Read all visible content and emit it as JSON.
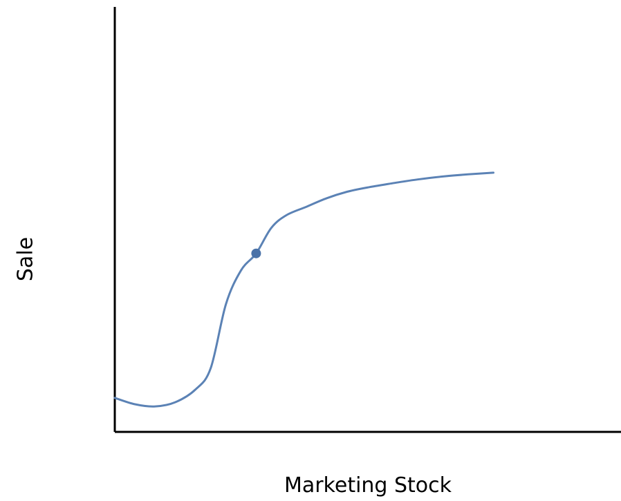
{
  "chart_data": {
    "type": "line",
    "xlabel": "Marketing Stock",
    "ylabel": "Sale",
    "grid": false,
    "ticks": false,
    "xlim": [
      0,
      100
    ],
    "ylim": [
      0,
      100
    ],
    "series": [
      {
        "color": "#5b82b5",
        "x": [
          0,
          4,
          8,
          12,
          16,
          19,
          22,
          25,
          28,
          31,
          34,
          38,
          42,
          46,
          50,
          55,
          60,
          65,
          70,
          75
        ],
        "y": [
          8,
          6.5,
          6,
          7,
          10,
          15,
          30,
          38,
          42,
          48,
          51,
          53,
          55,
          56.5,
          57.5,
          58.5,
          59.4,
          60.1,
          60.6,
          61
        ]
      }
    ],
    "highlight_point": {
      "x": 28,
      "y": 42,
      "color": "#4a72a8"
    }
  }
}
